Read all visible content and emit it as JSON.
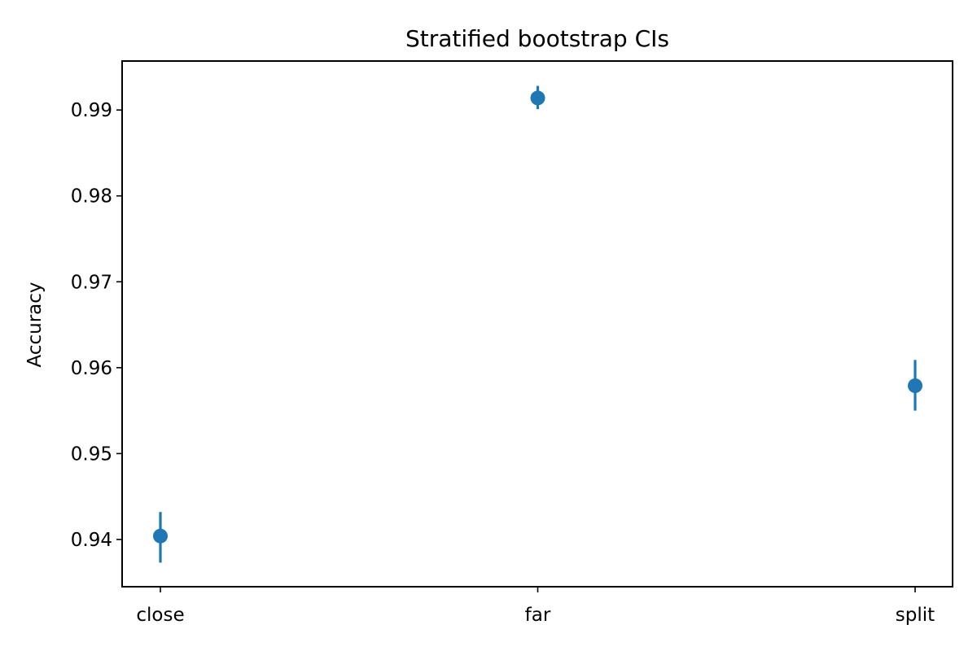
{
  "chart_data": {
    "type": "scatter",
    "title": "Stratified bootstrap CIs",
    "xlabel": "",
    "ylabel": "Accuracy",
    "categories": [
      "close",
      "far",
      "split"
    ],
    "series": [
      {
        "values": [
          0.9404,
          0.9914,
          0.9579
        ],
        "ci_low": [
          0.9373,
          0.9901,
          0.955
        ],
        "ci_high": [
          0.9432,
          0.9928,
          0.9609
        ]
      }
    ],
    "ylim": [
      0.9345,
      0.9957
    ],
    "yticks": [
      0.94,
      0.95,
      0.96,
      0.97,
      0.98,
      0.99
    ],
    "ytick_labels": [
      "0.94",
      "0.95",
      "0.96",
      "0.97",
      "0.98",
      "0.99"
    ],
    "grid": false,
    "legend": "none",
    "colors": {
      "marker": "#1f77b4",
      "axes": "#000000"
    }
  }
}
